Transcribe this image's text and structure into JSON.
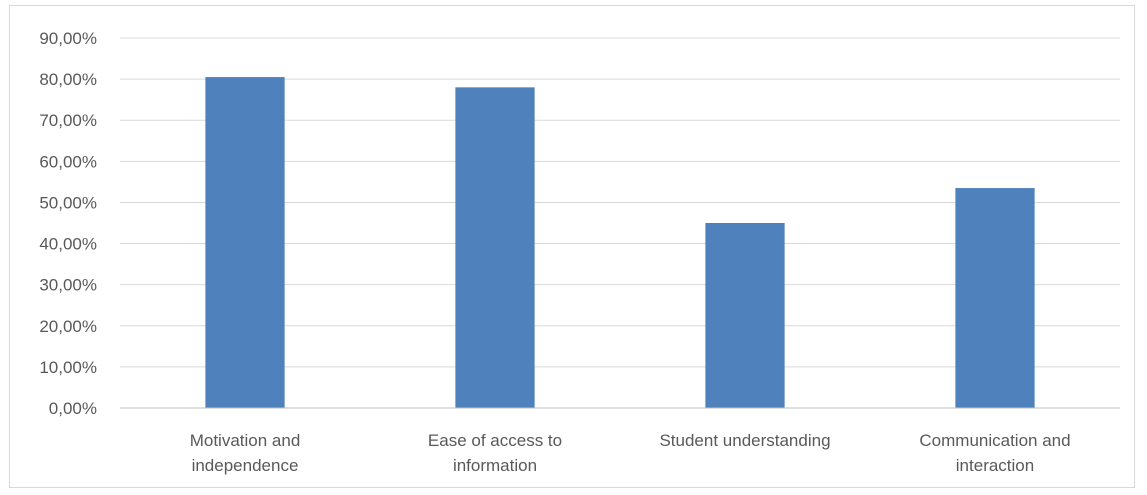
{
  "chart_data": {
    "type": "bar",
    "title": "",
    "xlabel": "",
    "ylabel": "",
    "categories": [
      [
        "Motivation and",
        "independence"
      ],
      [
        "Ease of access to",
        "information"
      ],
      [
        "Student understanding"
      ],
      [
        "Communication and",
        "interaction"
      ]
    ],
    "values": [
      0.805,
      0.78,
      0.45,
      0.535
    ],
    "ylim": [
      0,
      0.9
    ],
    "yticks": [
      0,
      0.1,
      0.2,
      0.3,
      0.4,
      0.5,
      0.6,
      0.7,
      0.8,
      0.9
    ],
    "ytick_labels": [
      "0,00%",
      "10,00%",
      "20,00%",
      "30,00%",
      "40,00%",
      "50,00%",
      "60,00%",
      "70,00%",
      "80,00%",
      "90,00%"
    ],
    "grid": true,
    "legend": "none",
    "colors": {
      "bar": "#4f81bd",
      "grid": "#d9d9d9",
      "axis": "#bfbfbf",
      "text": "#595959"
    }
  }
}
